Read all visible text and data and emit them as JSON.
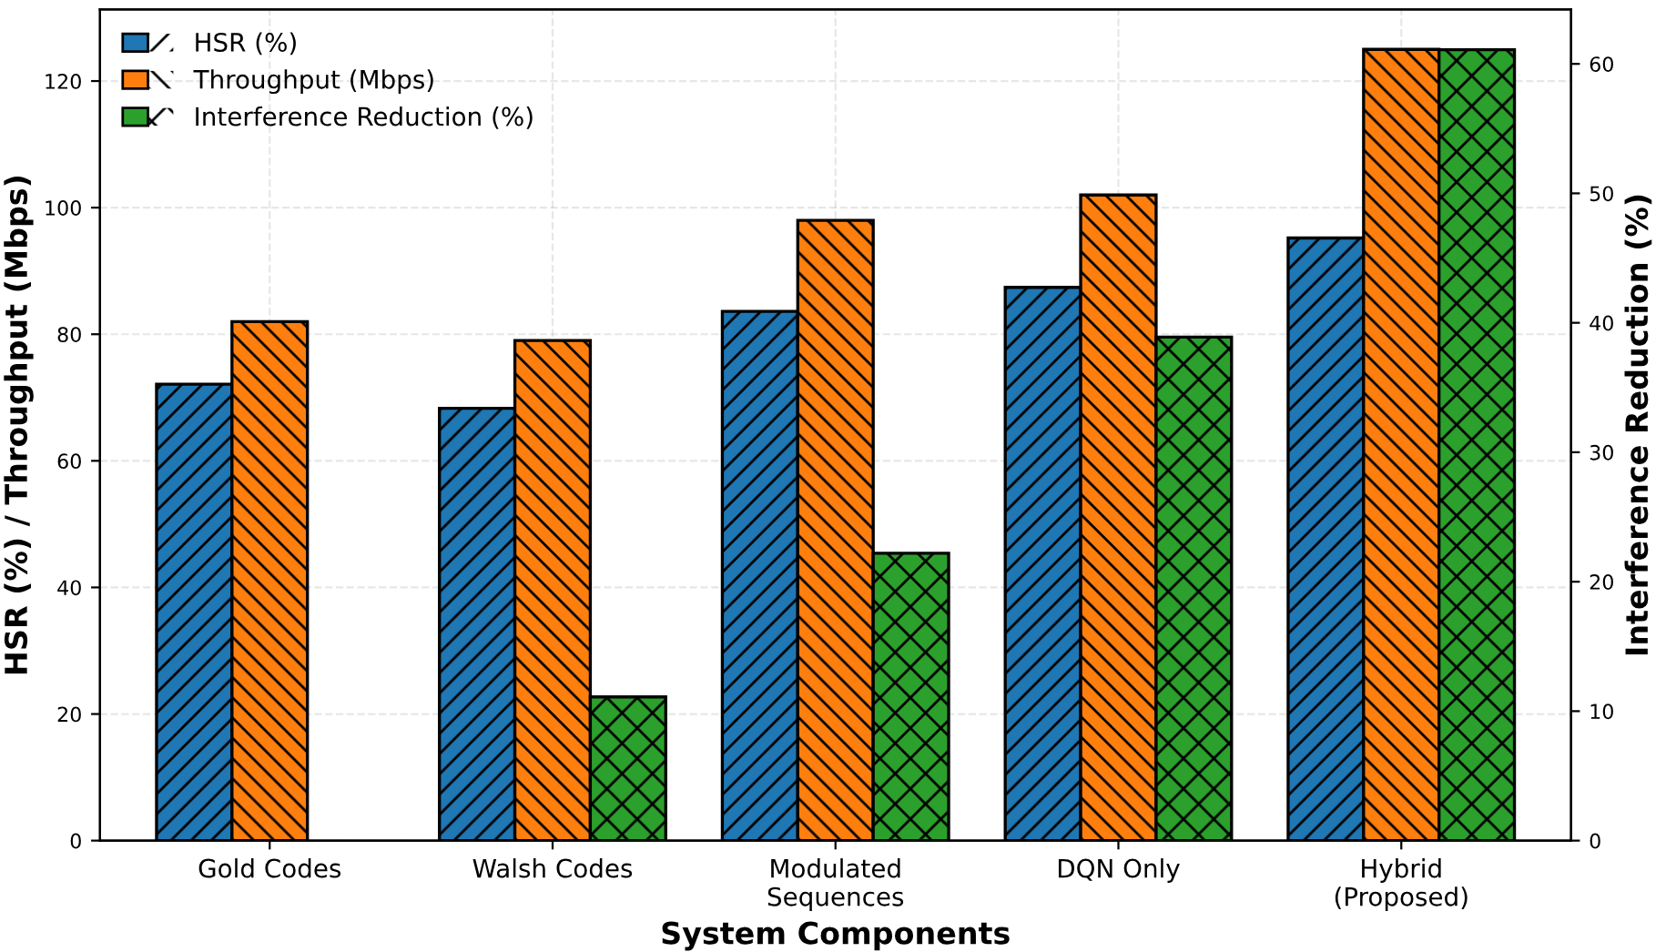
{
  "chart_data": {
    "type": "bar",
    "xlabel": "System Components",
    "ylabel": "HSR (%) / Throughput (Mbps)",
    "y2label": "Interference Reduction (%)",
    "categories": [
      "Gold Codes",
      "Walsh Codes",
      "Modulated\nSequences",
      "DQN Only",
      "Hybrid\n(Proposed)"
    ],
    "series": [
      {
        "name": "HSR (%)",
        "color": "#1f77b4",
        "values": [
          72.1,
          68.3,
          83.6,
          87.4,
          95.2
        ]
      },
      {
        "name": "Throughput (Mbps)",
        "color": "#ff7f0e",
        "values": [
          82,
          79,
          98,
          102,
          125
        ]
      },
      {
        "name": "Interference Reduction (%)",
        "color": "#2ca02c",
        "axis": "y2",
        "values": [
          null,
          11.1,
          22.2,
          38.9,
          61.1
        ]
      }
    ],
    "ylim": [
      0,
      131.3
    ],
    "yticks": [
      0,
      20,
      40,
      60,
      80,
      100,
      120
    ],
    "y2lim": [
      0,
      64.2
    ],
    "y2ticks": [
      0,
      10,
      20,
      30,
      40,
      50,
      60
    ],
    "grid": true,
    "legend": "top left"
  }
}
